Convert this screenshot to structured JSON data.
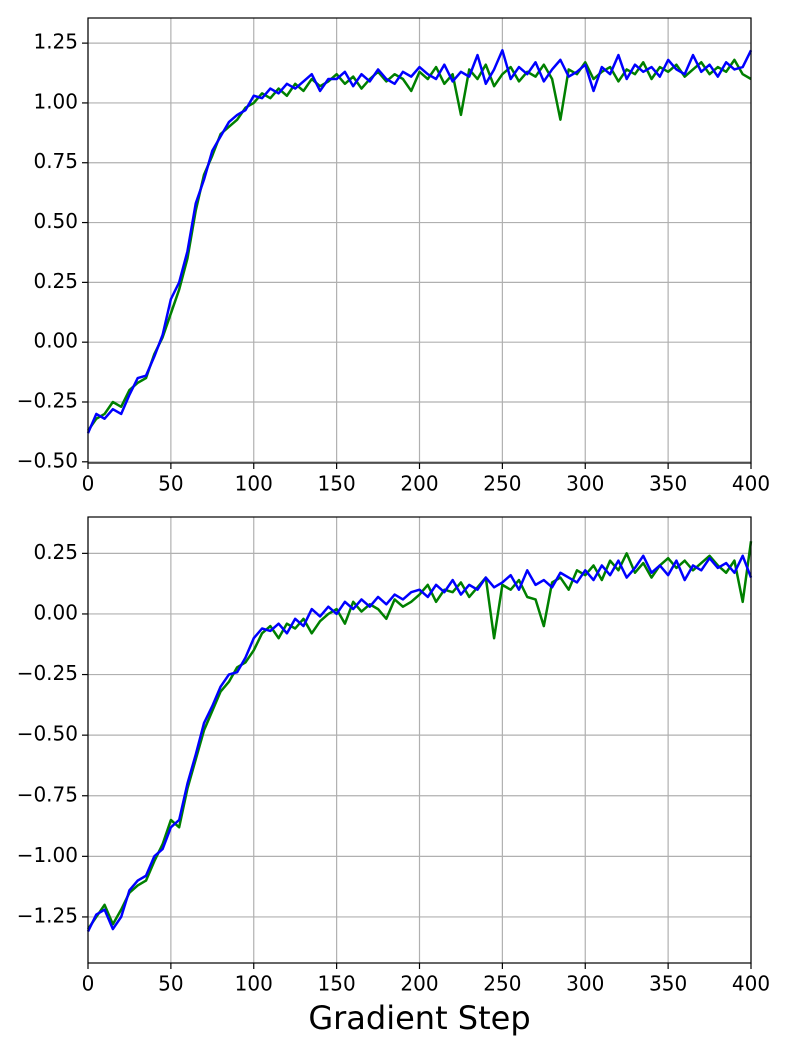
{
  "chart_data": [
    {
      "type": "line",
      "x": [
        0,
        5,
        10,
        15,
        20,
        25,
        30,
        35,
        40,
        45,
        50,
        55,
        60,
        65,
        70,
        75,
        80,
        85,
        90,
        95,
        100,
        105,
        110,
        115,
        120,
        125,
        130,
        135,
        140,
        145,
        150,
        155,
        160,
        165,
        170,
        175,
        180,
        185,
        190,
        195,
        200,
        205,
        210,
        215,
        220,
        225,
        230,
        235,
        240,
        245,
        250,
        255,
        260,
        265,
        270,
        275,
        280,
        285,
        290,
        295,
        300,
        305,
        310,
        315,
        320,
        325,
        330,
        335,
        340,
        345,
        350,
        355,
        360,
        365,
        370,
        375,
        380,
        385,
        390,
        395,
        400
      ],
      "series": [
        {
          "color": "#008000",
          "values": [
            -0.37,
            -0.32,
            -0.3,
            -0.25,
            -0.27,
            -0.2,
            -0.17,
            -0.15,
            -0.05,
            0.02,
            0.12,
            0.22,
            0.35,
            0.55,
            0.7,
            0.78,
            0.87,
            0.9,
            0.93,
            0.98,
            1.0,
            1.04,
            1.02,
            1.06,
            1.03,
            1.08,
            1.05,
            1.1,
            1.07,
            1.09,
            1.12,
            1.08,
            1.11,
            1.06,
            1.1,
            1.13,
            1.09,
            1.12,
            1.1,
            1.05,
            1.13,
            1.1,
            1.15,
            1.08,
            1.12,
            0.95,
            1.14,
            1.1,
            1.16,
            1.07,
            1.12,
            1.15,
            1.09,
            1.13,
            1.11,
            1.16,
            1.1,
            0.93,
            1.14,
            1.12,
            1.17,
            1.1,
            1.13,
            1.15,
            1.09,
            1.14,
            1.12,
            1.17,
            1.1,
            1.15,
            1.13,
            1.16,
            1.11,
            1.14,
            1.17,
            1.12,
            1.15,
            1.13,
            1.18,
            1.12,
            1.1
          ]
        },
        {
          "color": "#0000ff",
          "values": [
            -0.38,
            -0.3,
            -0.32,
            -0.28,
            -0.3,
            -0.22,
            -0.15,
            -0.14,
            -0.06,
            0.03,
            0.18,
            0.25,
            0.38,
            0.58,
            0.68,
            0.8,
            0.86,
            0.92,
            0.95,
            0.97,
            1.03,
            1.02,
            1.06,
            1.04,
            1.08,
            1.06,
            1.09,
            1.12,
            1.05,
            1.1,
            1.1,
            1.13,
            1.07,
            1.12,
            1.09,
            1.14,
            1.1,
            1.08,
            1.13,
            1.11,
            1.15,
            1.12,
            1.1,
            1.16,
            1.09,
            1.13,
            1.11,
            1.2,
            1.08,
            1.14,
            1.22,
            1.1,
            1.15,
            1.12,
            1.17,
            1.09,
            1.14,
            1.18,
            1.11,
            1.13,
            1.16,
            1.05,
            1.15,
            1.12,
            1.2,
            1.1,
            1.16,
            1.13,
            1.15,
            1.11,
            1.18,
            1.14,
            1.12,
            1.2,
            1.13,
            1.16,
            1.11,
            1.17,
            1.14,
            1.15,
            1.22
          ]
        }
      ],
      "xlim": [
        0,
        400
      ],
      "xticks": [
        0,
        50,
        100,
        150,
        200,
        250,
        300,
        350,
        400
      ],
      "ylim": [
        -0.505,
        1.355
      ],
      "yticks": [
        {
          "value": -0.5,
          "label": "−0.50"
        },
        {
          "value": -0.25,
          "label": "−0.25"
        },
        {
          "value": 0,
          "label": "0.00"
        },
        0.25,
        {
          "value": 0.5,
          "label": "0.50"
        },
        0.75,
        {
          "value": 1,
          "label": "1.00"
        },
        1.25
      ],
      "grid": true
    },
    {
      "type": "line",
      "x": [
        0,
        5,
        10,
        15,
        20,
        25,
        30,
        35,
        40,
        45,
        50,
        55,
        60,
        65,
        70,
        75,
        80,
        85,
        90,
        95,
        100,
        105,
        110,
        115,
        120,
        125,
        130,
        135,
        140,
        145,
        150,
        155,
        160,
        165,
        170,
        175,
        180,
        185,
        190,
        195,
        200,
        205,
        210,
        215,
        220,
        225,
        230,
        235,
        240,
        245,
        250,
        255,
        260,
        265,
        270,
        275,
        280,
        285,
        290,
        295,
        300,
        305,
        310,
        315,
        320,
        325,
        330,
        335,
        340,
        345,
        350,
        355,
        360,
        365,
        370,
        375,
        380,
        385,
        390,
        395,
        400
      ],
      "series": [
        {
          "color": "#008000",
          "values": [
            -1.3,
            -1.25,
            -1.2,
            -1.28,
            -1.22,
            -1.15,
            -1.12,
            -1.1,
            -1.02,
            -0.95,
            -0.85,
            -0.88,
            -0.72,
            -0.6,
            -0.48,
            -0.4,
            -0.32,
            -0.28,
            -0.22,
            -0.2,
            -0.15,
            -0.08,
            -0.05,
            -0.1,
            -0.04,
            -0.06,
            -0.02,
            -0.08,
            -0.03,
            0.0,
            0.02,
            -0.04,
            0.05,
            0.01,
            0.04,
            0.02,
            -0.02,
            0.06,
            0.03,
            0.05,
            0.08,
            0.12,
            0.05,
            0.1,
            0.09,
            0.13,
            0.07,
            0.11,
            0.15,
            -0.1,
            0.12,
            0.1,
            0.14,
            0.07,
            0.06,
            -0.05,
            0.13,
            0.15,
            0.1,
            0.18,
            0.16,
            0.2,
            0.14,
            0.22,
            0.18,
            0.25,
            0.17,
            0.21,
            0.15,
            0.2,
            0.23,
            0.19,
            0.22,
            0.18,
            0.21,
            0.24,
            0.2,
            0.17,
            0.22,
            0.05,
            0.3
          ]
        },
        {
          "color": "#0000ff",
          "values": [
            -1.31,
            -1.24,
            -1.22,
            -1.3,
            -1.25,
            -1.14,
            -1.1,
            -1.08,
            -1.0,
            -0.97,
            -0.88,
            -0.85,
            -0.7,
            -0.58,
            -0.45,
            -0.38,
            -0.3,
            -0.25,
            -0.24,
            -0.18,
            -0.1,
            -0.06,
            -0.07,
            -0.04,
            -0.08,
            -0.02,
            -0.05,
            0.02,
            -0.01,
            0.03,
            0.0,
            0.05,
            0.02,
            0.06,
            0.03,
            0.07,
            0.04,
            0.08,
            0.06,
            0.09,
            0.1,
            0.07,
            0.12,
            0.09,
            0.14,
            0.08,
            0.12,
            0.1,
            0.15,
            0.11,
            0.13,
            0.16,
            0.1,
            0.18,
            0.12,
            0.14,
            0.11,
            0.17,
            0.15,
            0.13,
            0.18,
            0.14,
            0.2,
            0.16,
            0.22,
            0.15,
            0.19,
            0.24,
            0.17,
            0.2,
            0.16,
            0.22,
            0.14,
            0.2,
            0.18,
            0.23,
            0.19,
            0.21,
            0.17,
            0.24,
            0.15
          ]
        }
      ],
      "xlim": [
        0,
        400
      ],
      "xticks": [
        0,
        50,
        100,
        150,
        200,
        250,
        300,
        350,
        400
      ],
      "ylim": [
        -1.44,
        0.4
      ],
      "yticks": [
        {
          "value": -1.25,
          "label": "−1.25"
        },
        {
          "value": -1,
          "label": "−1.00"
        },
        {
          "value": -0.75,
          "label": "−0.75"
        },
        {
          "value": -0.5,
          "label": "−0.50"
        },
        {
          "value": -0.25,
          "label": "−0.25"
        },
        {
          "value": 0,
          "label": "0.00"
        },
        0.25
      ],
      "xlabel": "Gradient Step",
      "grid": true
    }
  ]
}
